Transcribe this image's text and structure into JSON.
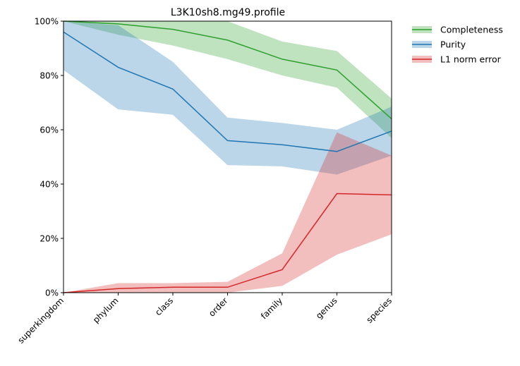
{
  "chart_data": {
    "type": "line",
    "title": "L3K10sh8.mg49.profile",
    "xlabel": "",
    "ylabel": "",
    "categories": [
      "superkingdom",
      "phylum",
      "class",
      "order",
      "family",
      "genus",
      "species"
    ],
    "ylim": [
      0,
      100
    ],
    "yticks": [
      0,
      20,
      40,
      60,
      80,
      100
    ],
    "ytick_labels": [
      "0%",
      "20%",
      "40%",
      "60%",
      "80%",
      "100%"
    ],
    "grid": false,
    "legend_position": "outside-top-right",
    "series": [
      {
        "name": "Completeness",
        "color": "#2ca02c",
        "band_color": "#2ca02c",
        "values": [
          100,
          99,
          97,
          93,
          86,
          82,
          64
        ],
        "lower": [
          100,
          95,
          91,
          86,
          80,
          75.5,
          57
        ],
        "upper": [
          100,
          100,
          100,
          100,
          92.5,
          89,
          71.5
        ]
      },
      {
        "name": "Purity",
        "color": "#1f77b4",
        "band_color": "#1f77b4",
        "values": [
          96,
          83,
          75,
          56,
          54.5,
          52,
          59.5
        ],
        "lower": [
          82,
          67.5,
          65.5,
          47,
          46.5,
          43.5,
          50.5
        ],
        "upper": [
          100,
          98.5,
          85,
          64.5,
          62.5,
          60,
          68.5
        ]
      },
      {
        "name": "L1 norm error",
        "color": "#d62728",
        "band_color": "#d62728",
        "values": [
          0,
          1.5,
          2,
          2,
          8.5,
          36.5,
          36
        ],
        "lower": [
          0,
          0,
          0,
          0,
          2.5,
          14,
          21.5
        ],
        "upper": [
          0,
          3.5,
          3.5,
          4,
          14.5,
          59,
          50.5
        ]
      }
    ]
  }
}
